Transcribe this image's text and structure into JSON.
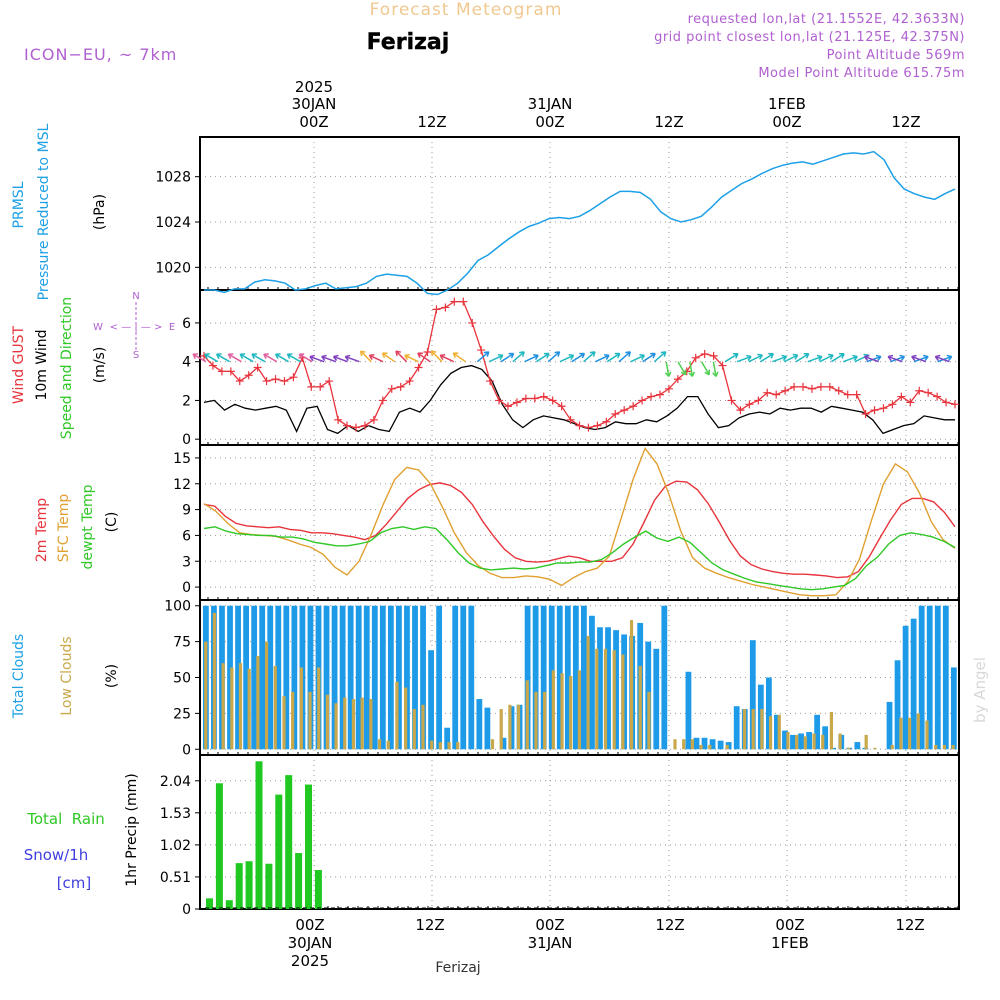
{
  "header": {
    "title": "Forecast Meteogram",
    "location": "Ferizaj",
    "model": "ICON−EU, ~ 7km",
    "requested": "requested lon,lat (21.1552E, 42.3633N)",
    "grid_point": "grid point closest lon,lat (21.125E, 42.375N)",
    "point_altitude": "Point Altitude 569m",
    "model_altitude": "Model Point Altitude 615.75m",
    "footer_location": "Ferizaj",
    "watermark": "by Angel",
    "compass_n": "N",
    "compass_s": "S",
    "compass_e": "E",
    "compass_w": "W",
    "compass_h": "< — | — >"
  },
  "time_axis": {
    "top_labels": [
      "00Z",
      "12Z",
      "00Z",
      "12Z",
      "00Z",
      "12Z"
    ],
    "top_dates": [
      "30JAN",
      "31JAN",
      "1FEB"
    ],
    "top_year": "2025",
    "bottom_labels": [
      "00Z",
      "12Z",
      "00Z",
      "12Z",
      "00Z",
      "12Z"
    ],
    "bottom_dates": [
      "30JAN",
      "31JAN",
      "1FEB"
    ],
    "bottom_year": "2025"
  },
  "chart_data": [
    {
      "type": "line",
      "panel": "pressure",
      "ylabel_lines": [
        "PRMSL",
        "Pressure Reduced to MSL"
      ],
      "unit": "(hPa)",
      "yticks": [
        "1020",
        "1024",
        "1028"
      ],
      "ylim": [
        1018,
        1031.5
      ],
      "x_hours": [
        -11,
        -10,
        -9,
        -8,
        -7,
        -6,
        -5,
        -4,
        -3,
        -2,
        -1,
        0,
        1,
        2,
        3,
        4,
        5,
        6,
        7,
        8,
        9,
        10,
        11,
        12,
        13,
        14,
        15,
        16,
        17,
        18,
        19,
        20,
        21,
        22,
        23,
        24,
        25,
        26,
        27,
        28,
        29,
        30,
        31,
        32,
        33,
        34,
        35,
        36,
        37,
        38,
        39,
        40,
        41,
        42,
        43,
        44,
        45,
        46,
        47,
        48,
        49,
        50,
        51,
        52,
        53,
        54,
        55,
        56,
        57,
        58,
        59,
        60,
        61,
        62,
        63,
        64,
        65
      ],
      "series": [
        {
          "name": "PRMSL",
          "color": "#1ea0e6",
          "values": [
            1018.0,
            1018.0,
            1017.8,
            1018.1,
            1018.1,
            1018.7,
            1018.9,
            1018.8,
            1018.6,
            1018.0,
            1018.1,
            1018.4,
            1018.6,
            1018.1,
            1018.2,
            1018.3,
            1018.6,
            1019.2,
            1019.4,
            1019.3,
            1019.2,
            1018.6,
            1017.7,
            1017.6,
            1018.0,
            1018.6,
            1019.5,
            1020.6,
            1021.1,
            1021.8,
            1022.5,
            1023.1,
            1023.6,
            1023.9,
            1024.3,
            1024.4,
            1024.3,
            1024.5,
            1025.0,
            1025.6,
            1026.2,
            1026.7,
            1026.7,
            1026.6,
            1026.0,
            1024.9,
            1024.3,
            1024.0,
            1024.2,
            1024.5,
            1025.3,
            1026.2,
            1026.8,
            1027.4,
            1027.8,
            1028.3,
            1028.7,
            1029.0,
            1029.2,
            1029.3,
            1029.1,
            1029.4,
            1029.7,
            1030.0,
            1030.1,
            1030.0,
            1030.2,
            1029.5,
            1027.9,
            1026.9,
            1026.5,
            1026.2,
            1026.0,
            1026.5,
            1026.9
          ]
        }
      ]
    },
    {
      "type": "line",
      "panel": "wind",
      "ylabel_lines": [
        "Wind GUST",
        "10m Wind",
        "Speed and Direction"
      ],
      "unit": "(m/s)",
      "yticks": [
        "0",
        "2",
        "4",
        "6"
      ],
      "ylim": [
        -0.3,
        7.7
      ],
      "series": [
        {
          "name": "Wind GUST",
          "color": "#e8343c",
          "marker": "+",
          "values": [
            4.3,
            3.8,
            3.5,
            3.5,
            3.0,
            3.3,
            3.7,
            3.0,
            3.1,
            3.0,
            3.2,
            4.2,
            2.7,
            2.7,
            3.0,
            1.0,
            0.7,
            0.6,
            0.7,
            1.0,
            2.0,
            2.6,
            2.7,
            3.0,
            3.7,
            4.5,
            6.7,
            6.8,
            7.1,
            7.1,
            6.0,
            4.6,
            3.0,
            2.0,
            1.7,
            1.9,
            2.1,
            2.1,
            2.2,
            2.0,
            1.7,
            1.0,
            0.7,
            0.6,
            0.7,
            0.9,
            1.3,
            1.5,
            1.7,
            2.0,
            2.2,
            2.3,
            2.6,
            3.1,
            3.5,
            4.2,
            4.4,
            4.3,
            3.8,
            2.0,
            1.5,
            1.8,
            2.0,
            2.4,
            2.3,
            2.5,
            2.7,
            2.7,
            2.6,
            2.7,
            2.7,
            2.5,
            2.3,
            2.3,
            1.3,
            1.5,
            1.6,
            1.8,
            2.2,
            1.9,
            2.5,
            2.4,
            2.2,
            1.9,
            1.8
          ]
        },
        {
          "name": "10m Wind",
          "color": "#000000",
          "values": [
            1.9,
            2.0,
            1.5,
            1.8,
            1.6,
            1.5,
            1.6,
            1.7,
            1.5,
            0.4,
            1.6,
            1.7,
            0.5,
            0.3,
            0.7,
            0.4,
            0.7,
            0.5,
            0.4,
            1.4,
            1.6,
            1.4,
            2.0,
            2.8,
            3.4,
            3.7,
            3.8,
            3.6,
            3.0,
            1.8,
            1.0,
            0.6,
            1.0,
            1.2,
            1.1,
            1.0,
            0.8,
            0.6,
            0.5,
            0.6,
            0.9,
            0.8,
            0.8,
            1.0,
            0.9,
            1.2,
            1.6,
            2.2,
            2.2,
            1.3,
            0.6,
            0.7,
            1.1,
            1.3,
            1.4,
            1.3,
            1.6,
            1.5,
            1.6,
            1.6,
            1.4,
            1.7,
            1.6,
            1.5,
            1.4,
            1.0,
            0.3,
            0.5,
            0.7,
            0.8,
            1.2,
            1.1,
            1.0,
            1.0
          ]
        }
      ]
    },
    {
      "type": "line",
      "panel": "temperature",
      "ylabel_lines": [
        "2m Temp",
        "SFC Temp",
        "dewpt Temp"
      ],
      "unit": "(C)",
      "yticks": [
        "0",
        "3",
        "6",
        "9",
        "12",
        "15"
      ],
      "ylim": [
        -1.5,
        16.5
      ],
      "series": [
        {
          "name": "2m Temp",
          "color": "#e8343c",
          "values": [
            9.6,
            9.4,
            8.2,
            7.4,
            7.1,
            7.0,
            6.9,
            7.0,
            6.7,
            6.6,
            6.3,
            6.3,
            6.2,
            6.0,
            5.8,
            5.5,
            6.0,
            7.3,
            8.8,
            10.3,
            11.3,
            11.9,
            12.1,
            11.8,
            11.0,
            9.6,
            7.6,
            5.9,
            4.4,
            3.4,
            3.0,
            2.9,
            3.0,
            3.3,
            3.6,
            3.4,
            3.0,
            3.0,
            3.0,
            3.4,
            5.0,
            7.5,
            10.1,
            11.7,
            12.3,
            12.2,
            11.3,
            9.7,
            7.6,
            5.4,
            3.6,
            2.6,
            2.1,
            1.8,
            1.6,
            1.5,
            1.5,
            1.4,
            1.3,
            1.1,
            1.2,
            1.8,
            3.5,
            5.7,
            7.8,
            9.6,
            10.3,
            10.3,
            9.9,
            8.7,
            7.0
          ]
        },
        {
          "name": "SFC Temp",
          "color": "#e0a030",
          "values": [
            9.7,
            8.8,
            7.4,
            6.3,
            6.1,
            6.0,
            5.9,
            5.5,
            5.0,
            4.6,
            3.8,
            2.3,
            1.4,
            3.0,
            6.0,
            9.5,
            12.5,
            13.9,
            13.6,
            12.0,
            9.3,
            6.3,
            4.0,
            2.5,
            1.6,
            1.1,
            1.1,
            1.3,
            1.2,
            0.9,
            0.2,
            1.1,
            1.8,
            2.2,
            3.6,
            8.0,
            12.5,
            16.1,
            14.3,
            10.8,
            6.5,
            3.4,
            2.2,
            1.6,
            1.1,
            0.7,
            0.3,
            0.0,
            -0.3,
            -0.6,
            -0.9,
            -1.0,
            -1.0,
            -0.9,
            0.6,
            3.3,
            7.8,
            12.0,
            14.3,
            13.4,
            11.0,
            7.6,
            5.5,
            4.5
          ]
        },
        {
          "name": "dewpt Temp",
          "color": "#2fc826",
          "values": [
            6.8,
            7.0,
            6.5,
            6.2,
            6.1,
            6.0,
            6.0,
            5.8,
            5.8,
            5.6,
            5.2,
            5.0,
            4.8,
            4.8,
            5.0,
            5.3,
            6.3,
            6.8,
            7.0,
            6.7,
            7.0,
            6.8,
            5.5,
            4.0,
            2.8,
            2.2,
            2.0,
            2.1,
            2.2,
            2.1,
            2.2,
            2.5,
            2.8,
            2.8,
            2.9,
            2.9,
            3.2,
            4.0,
            5.0,
            5.8,
            6.5,
            5.7,
            5.3,
            5.8,
            5.2,
            4.0,
            2.8,
            2.0,
            1.5,
            1.0,
            0.6,
            0.4,
            0.2,
            0.0,
            -0.2,
            -0.3,
            -0.2,
            0.0,
            0.2,
            1.0,
            2.5,
            3.5,
            5.0,
            6.0,
            6.3,
            6.1,
            5.8,
            5.3,
            4.6
          ]
        }
      ]
    },
    {
      "type": "bar",
      "panel": "clouds",
      "ylabel_lines": [
        "Total Clouds",
        "Low Clouds"
      ],
      "unit": "(%)",
      "yticks": [
        "0",
        "25",
        "50",
        "75",
        "100"
      ],
      "ylim": [
        -4,
        104
      ],
      "series": [
        {
          "name": "Total Clouds",
          "color": "#1e9be8",
          "values": [
            100,
            100,
            100,
            100,
            100,
            100,
            100,
            100,
            100,
            100,
            100,
            100,
            100,
            100,
            100,
            100,
            100,
            100,
            100,
            100,
            100,
            100,
            100,
            100,
            100,
            100,
            100,
            100,
            69,
            100,
            15,
            100,
            100,
            100,
            35,
            29,
            0,
            8,
            30,
            31,
            100,
            100,
            100,
            100,
            100,
            100,
            100,
            100,
            93,
            85,
            85,
            83,
            80,
            79,
            88,
            75,
            70,
            100,
            0,
            0,
            54,
            8,
            8,
            7,
            6,
            5,
            30,
            28,
            76,
            45,
            50,
            24,
            13,
            10,
            11,
            12,
            24,
            16,
            1,
            10,
            1,
            5,
            1,
            0,
            0,
            33,
            62,
            86,
            91,
            100,
            100,
            100,
            100,
            57
          ]
        },
        {
          "name": "Low Clouds",
          "color": "#c8a84a",
          "values": [
            75,
            95,
            60,
            57,
            60,
            56,
            65,
            75,
            58,
            37,
            40,
            57,
            40,
            57,
            38,
            32,
            36,
            35,
            36,
            35,
            7,
            6,
            47,
            43,
            28,
            31,
            6,
            5,
            5,
            5,
            0,
            0,
            0,
            7,
            28,
            31,
            31,
            48,
            40,
            40,
            55,
            53,
            51,
            55,
            79,
            70,
            70,
            69,
            66,
            90,
            58,
            40,
            0,
            0,
            7,
            7,
            7,
            3,
            3,
            0,
            3,
            0,
            28,
            28,
            28,
            23,
            24,
            12,
            10,
            9,
            11,
            10,
            26,
            11,
            1,
            0,
            10,
            1,
            0,
            3,
            22,
            22,
            25,
            20,
            3,
            3,
            3
          ]
        }
      ]
    },
    {
      "type": "bar",
      "panel": "precip",
      "ylabel_lines": [
        "Total  Rain",
        "Snow/1h",
        "[cm]"
      ],
      "unit": "1hr Precip (mm)",
      "yticks": [
        "0",
        "0.51",
        "1.02",
        "1.53",
        "2.04"
      ],
      "ylim": [
        0,
        2.45
      ],
      "series": [
        {
          "name": "Total Rain",
          "color": "#22c822",
          "values": [
            0.17,
            2.0,
            0.14,
            0.73,
            0.76,
            2.35,
            0.72,
            1.82,
            2.13,
            0.89,
            1.98,
            0.62
          ]
        }
      ]
    }
  ]
}
